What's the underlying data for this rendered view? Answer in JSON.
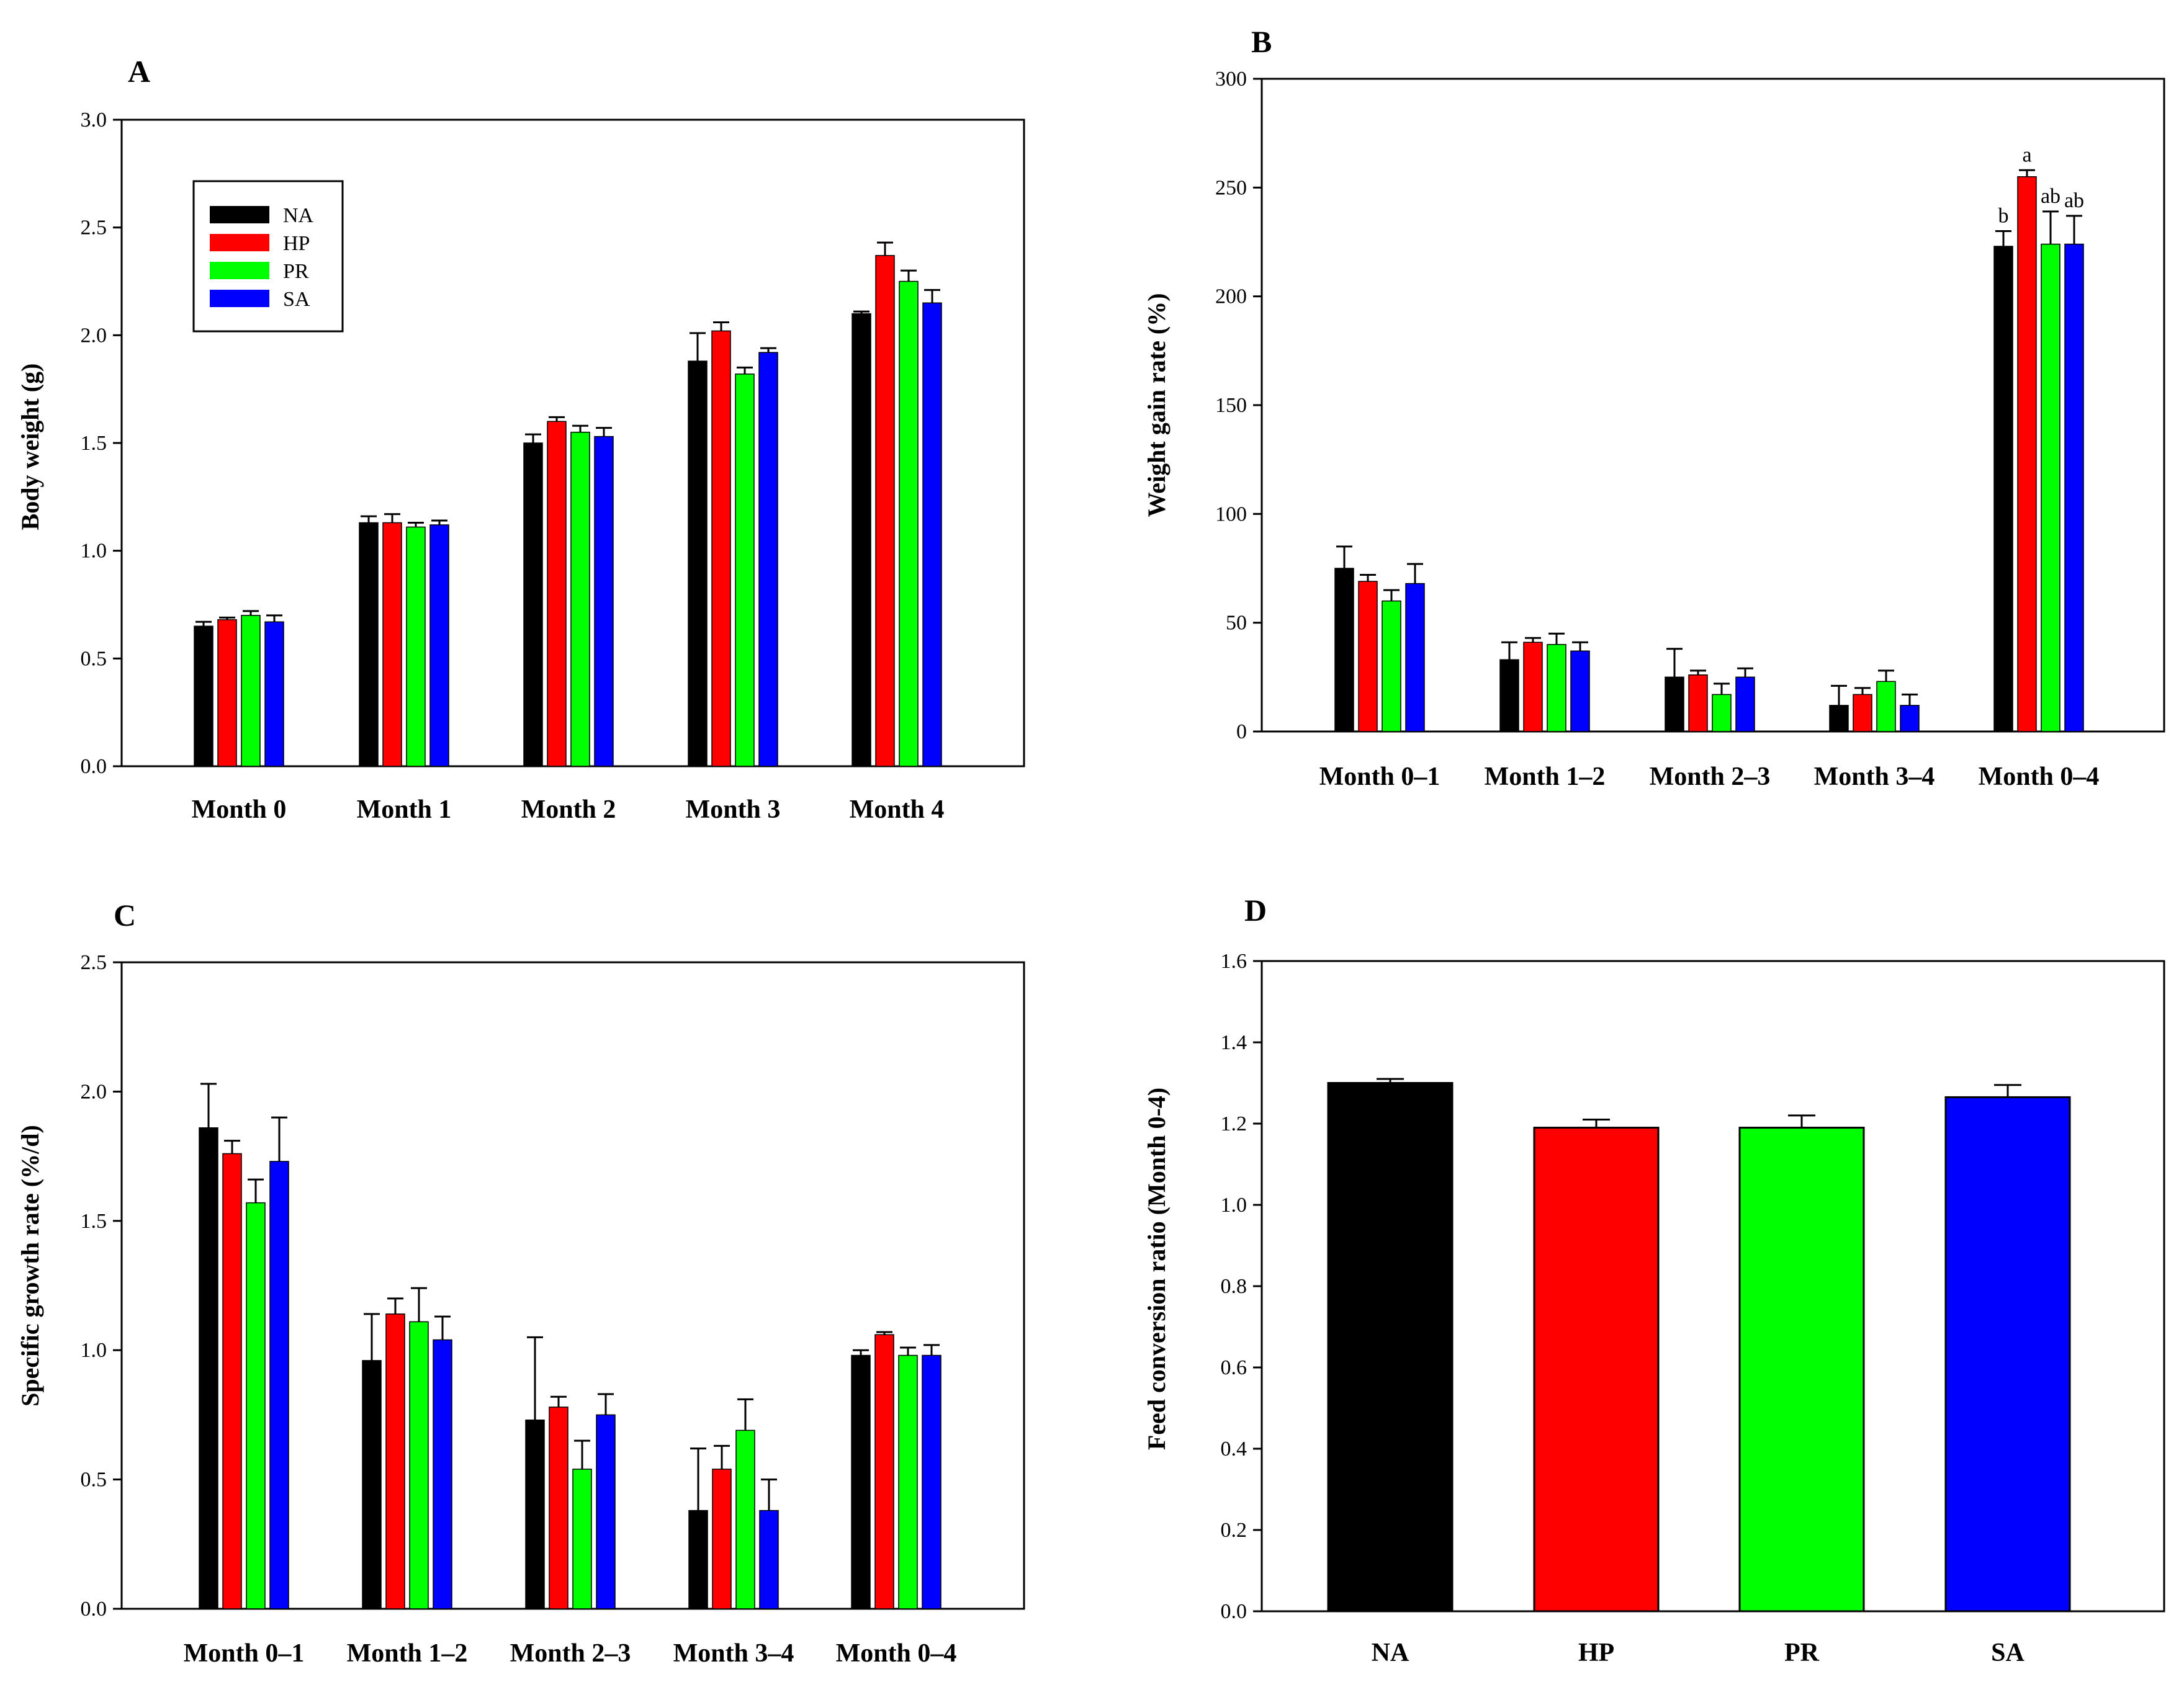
{
  "colors": {
    "NA": "#000000",
    "HP": "#ff0000",
    "PR": "#00ff00",
    "SA": "#0000ff"
  },
  "chart_data": [
    {
      "panel": "A",
      "type": "bar",
      "ylabel": "Body weight (g)",
      "xlabel": "",
      "ylim": [
        0,
        3.0
      ],
      "yticks": [
        "0.0",
        "0.5",
        "1.0",
        "1.5",
        "2.0",
        "2.5",
        "3.0"
      ],
      "categories": [
        "Month 0",
        "Month 1",
        "Month 2",
        "Month 3",
        "Month 4"
      ],
      "legend": {
        "position": "top-left",
        "entries": [
          "NA",
          "HP",
          "PR",
          "SA"
        ]
      },
      "series": [
        {
          "name": "NA",
          "values": [
            0.65,
            1.13,
            1.5,
            1.88,
            2.1
          ],
          "errors": [
            0.02,
            0.03,
            0.04,
            0.13,
            0.01
          ]
        },
        {
          "name": "HP",
          "values": [
            0.68,
            1.13,
            1.6,
            2.02,
            2.37
          ],
          "errors": [
            0.01,
            0.04,
            0.02,
            0.04,
            0.06
          ]
        },
        {
          "name": "PR",
          "values": [
            0.7,
            1.11,
            1.55,
            1.82,
            2.25
          ],
          "errors": [
            0.02,
            0.02,
            0.03,
            0.03,
            0.05
          ]
        },
        {
          "name": "SA",
          "values": [
            0.67,
            1.12,
            1.53,
            1.92,
            2.15
          ],
          "errors": [
            0.03,
            0.02,
            0.04,
            0.02,
            0.06
          ]
        }
      ],
      "annotations": []
    },
    {
      "panel": "B",
      "type": "bar",
      "ylabel": "Weight gain rate (%)",
      "xlabel": "",
      "ylim": [
        0,
        300
      ],
      "yticks": [
        "0",
        "50",
        "100",
        "150",
        "200",
        "250",
        "300"
      ],
      "categories": [
        "Month 0–1",
        "Month 1–2",
        "Month 2–3",
        "Month 3–4",
        "Month 0–4"
      ],
      "series": [
        {
          "name": "NA",
          "values": [
            75,
            33,
            25,
            12,
            223
          ],
          "errors": [
            10,
            8,
            13,
            9,
            7
          ]
        },
        {
          "name": "HP",
          "values": [
            69,
            41,
            26,
            17,
            255
          ],
          "errors": [
            3,
            2,
            2,
            3,
            3
          ]
        },
        {
          "name": "PR",
          "values": [
            60,
            40,
            17,
            23,
            224
          ],
          "errors": [
            5,
            5,
            5,
            5,
            15
          ]
        },
        {
          "name": "SA",
          "values": [
            68,
            37,
            25,
            12,
            224
          ],
          "errors": [
            9,
            4,
            4,
            5,
            13
          ]
        }
      ],
      "annotations": [
        {
          "category": 4,
          "series": 0,
          "text": "b"
        },
        {
          "category": 4,
          "series": 1,
          "text": "a"
        },
        {
          "category": 4,
          "series": 2,
          "text": "ab"
        },
        {
          "category": 4,
          "series": 3,
          "text": "ab"
        }
      ]
    },
    {
      "panel": "C",
      "type": "bar",
      "ylabel": "Specific growth rate (%/d)",
      "xlabel": "",
      "ylim": [
        0,
        2.5
      ],
      "yticks": [
        "0.0",
        "0.5",
        "1.0",
        "1.5",
        "2.0",
        "2.5"
      ],
      "categories": [
        "Month 0–1",
        "Month 1–2",
        "Month 2–3",
        "Month 3–4",
        "Month 0–4"
      ],
      "series": [
        {
          "name": "NA",
          "values": [
            1.86,
            0.96,
            0.73,
            0.38,
            0.98
          ],
          "errors": [
            0.17,
            0.18,
            0.32,
            0.24,
            0.02
          ]
        },
        {
          "name": "HP",
          "values": [
            1.76,
            1.14,
            0.78,
            0.54,
            1.06
          ],
          "errors": [
            0.05,
            0.06,
            0.04,
            0.09,
            0.01
          ]
        },
        {
          "name": "PR",
          "values": [
            1.57,
            1.11,
            0.54,
            0.69,
            0.98
          ],
          "errors": [
            0.09,
            0.13,
            0.11,
            0.12,
            0.03
          ]
        },
        {
          "name": "SA",
          "values": [
            1.73,
            1.04,
            0.75,
            0.38,
            0.98
          ],
          "errors": [
            0.17,
            0.09,
            0.08,
            0.12,
            0.04
          ]
        }
      ],
      "annotations": []
    },
    {
      "panel": "D",
      "type": "bar",
      "ylabel": "Feed conversion ratio (Month 0-4)",
      "xlabel": "",
      "ylim": [
        0,
        1.6
      ],
      "yticks": [
        "0.0",
        "0.2",
        "0.4",
        "0.6",
        "0.8",
        "1.0",
        "1.2",
        "1.4",
        "1.6"
      ],
      "categories": [
        "NA",
        "HP",
        "PR",
        "SA"
      ],
      "series": [
        {
          "name": "Feed conversion ratio",
          "values": [
            1.3,
            1.19,
            1.19,
            1.265
          ],
          "errors": [
            0.01,
            0.02,
            0.03,
            0.03
          ]
        }
      ],
      "annotations": []
    }
  ]
}
